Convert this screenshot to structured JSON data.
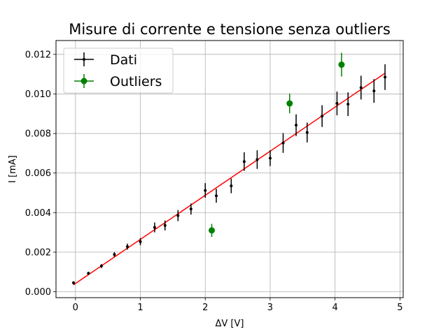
{
  "chart_data": {
    "type": "scatter",
    "title": "Misure di corrente e tensione senza outliers",
    "xlabel": "ΔV [V]",
    "ylabel": "I [mA]",
    "xlim": [
      -0.3,
      5.05
    ],
    "ylim": [
      -0.0003,
      0.0127
    ],
    "xticks": [
      0,
      1,
      2,
      3,
      4,
      5
    ],
    "xtick_labels": [
      "0",
      "1",
      "2",
      "3",
      "4",
      "5"
    ],
    "yticks": [
      0.0,
      0.002,
      0.004,
      0.006,
      0.008,
      0.01,
      0.012
    ],
    "ytick_labels": [
      "0.000",
      "0.002",
      "0.004",
      "0.006",
      "0.008",
      "0.010",
      "0.012"
    ],
    "grid": true,
    "legend_position": "top-left",
    "series": [
      {
        "name": "Dati",
        "color": "#000000",
        "marker": "point",
        "x": [
          -0.03,
          0.2,
          0.4,
          0.6,
          0.8,
          1.0,
          1.22,
          1.38,
          1.58,
          1.78,
          2.0,
          2.17,
          2.4,
          2.6,
          2.8,
          3.0,
          3.2,
          3.4,
          3.57,
          3.8,
          4.03,
          4.2,
          4.4,
          4.6,
          4.77
        ],
        "y": [
          0.00045,
          0.00093,
          0.0013,
          0.00188,
          0.00228,
          0.00253,
          0.00325,
          0.00335,
          0.00385,
          0.00418,
          0.00512,
          0.00485,
          0.00535,
          0.00658,
          0.00668,
          0.00675,
          0.00752,
          0.00842,
          0.00805,
          0.00888,
          0.00952,
          0.00948,
          0.01032,
          0.01015,
          0.01085
        ],
        "yerr": [
          8e-05,
          8e-05,
          0.0001,
          0.00012,
          0.00015,
          0.00018,
          0.00025,
          0.00025,
          0.00028,
          0.00028,
          0.00037,
          0.00035,
          0.00037,
          0.00047,
          0.00047,
          0.0004,
          0.0005,
          0.00055,
          0.0005,
          0.00055,
          0.0006,
          0.0006,
          0.0006,
          0.0006,
          0.00065
        ]
      },
      {
        "name": "Outliers",
        "color": "#008000",
        "marker": "circle",
        "x": [
          2.1,
          3.3,
          4.1
        ],
        "y": [
          0.0031,
          0.00952,
          0.01148
        ],
        "yerr": [
          0.00033,
          0.0005,
          0.0006
        ]
      }
    ],
    "fit_line": {
      "color": "#ff0000",
      "x": [
        -0.03,
        4.77
      ],
      "y": [
        0.00035,
        0.01105
      ]
    }
  }
}
